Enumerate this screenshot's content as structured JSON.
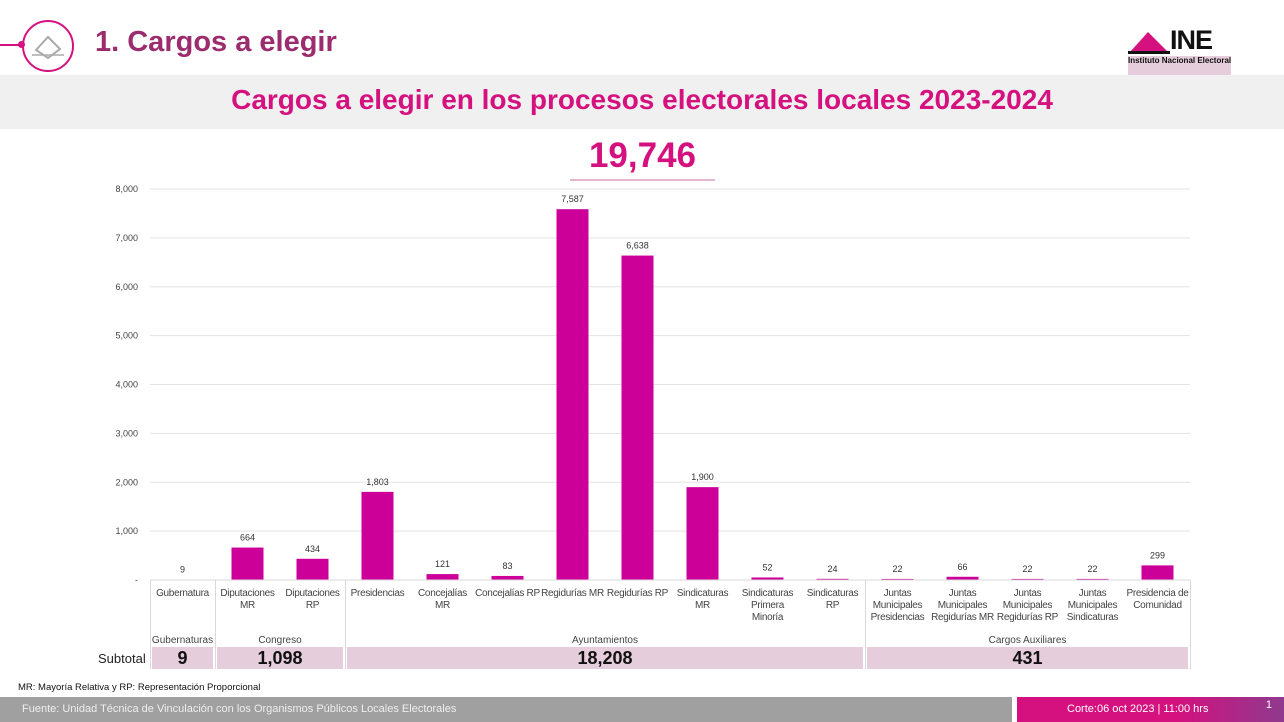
{
  "header": {
    "section_title": "1. Cargos a elegir",
    "logo_text": "INE",
    "logo_subtitle": "Instituto Nacional Electoral"
  },
  "main_title": "Cargos a elegir en los procesos electorales locales 2023-2024",
  "total": "19,746",
  "chart_data": {
    "type": "bar",
    "categories": [
      "Gubernatura",
      "Diputaciones MR",
      "Diputaciones RP",
      "Presidencias",
      "Concejalías MR",
      "Concejalías RP",
      "Regidurías MR",
      "Regidurías RP",
      "Sindicaturas MR",
      "Sindicaturas Primera Minoría",
      "Sindicaturas RP",
      "Juntas Municipales Presidencias",
      "Juntas Municipales Regidurías MR",
      "Juntas Municipales Regidurías RP",
      "Juntas Municipales Sindicaturas",
      "Presidencia de Comunidad"
    ],
    "values": [
      9,
      664,
      434,
      1803,
      121,
      83,
      7587,
      6638,
      1900,
      52,
      24,
      22,
      66,
      22,
      22,
      299
    ],
    "data_labels": [
      "9",
      "664",
      "434",
      "1,803",
      "121",
      "83",
      "7,587",
      "6,638",
      "1,900",
      "52",
      "24",
      "22",
      "66",
      "22",
      "22",
      "299"
    ],
    "yticks": [
      "-",
      "1,000",
      "2,000",
      "3,000",
      "4,000",
      "5,000",
      "6,000",
      "7,000",
      "8,000"
    ],
    "ylim": [
      0,
      8000
    ],
    "grid": true,
    "bar_color": "#cc0099",
    "groups": [
      {
        "name": "Gubernaturas",
        "subtotal": "9",
        "span": 1
      },
      {
        "name": "Congreso",
        "subtotal": "1,098",
        "span": 2
      },
      {
        "name": "Ayuntamientos",
        "subtotal": "18,208",
        "span": 8
      },
      {
        "name": "Cargos Auxiliares",
        "subtotal": "431",
        "span": 5
      }
    ],
    "subtotal_label": "Subtotal"
  },
  "note": "MR: Mayoría Relativa y RP:  Representación Proporcional",
  "footer": {
    "source": "Fuente: Unidad Técnica de Vinculación con los Organismos Públicos Locales Electorales",
    "date": "Corte:06 oct 2023 | 11:00 hrs",
    "page": "1"
  },
  "colors": {
    "accent": "#d4117e",
    "title": "#9b2c6e"
  }
}
